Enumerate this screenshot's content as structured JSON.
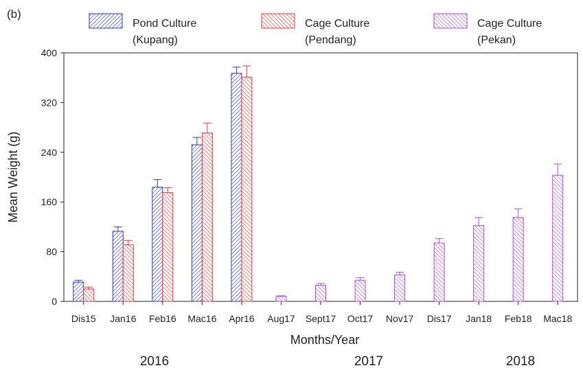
{
  "panel_label": "(b)",
  "legend": [
    {
      "line1": "Pond Culture",
      "line2": "(Kupang)",
      "color": "#2b3bb0",
      "hatch": "pattern-blue"
    },
    {
      "line1": "Cage Culture",
      "line2": "(Pendang)",
      "color": "#d93a3a",
      "hatch": "pattern-red"
    },
    {
      "line1": "Cage Culture",
      "line2": "(Pekan)",
      "color": "#a94fd0",
      "hatch": "pattern-purple"
    }
  ],
  "year_labels": [
    "2016",
    "2017",
    "2018"
  ],
  "chart_data": {
    "type": "bar",
    "xlabel": "Months/Year",
    "ylabel": "Mean Weight (g)",
    "ylim": [
      0,
      400
    ],
    "yticks": [
      0,
      80,
      160,
      240,
      320,
      400
    ],
    "grid": false,
    "legend_position": "top",
    "categories": [
      "Dis15",
      "Jan16",
      "Feb16",
      "Mac16",
      "Apr16",
      "Aug17",
      "Sept17",
      "Oct17",
      "Nov17",
      "Dis17",
      "Jan18",
      "Feb18",
      "Mac18"
    ],
    "series": [
      {
        "name": "Pond Culture (Kupang)",
        "color": "#2b3bb0",
        "values": [
          31,
          113,
          184,
          252,
          367,
          null,
          null,
          null,
          null,
          null,
          null,
          null,
          null
        ],
        "errors": [
          3,
          7,
          12,
          12,
          10,
          null,
          null,
          null,
          null,
          null,
          null,
          null,
          null
        ]
      },
      {
        "name": "Cage Culture (Pendang)",
        "color": "#d93a3a",
        "values": [
          20,
          91,
          175,
          271,
          361,
          null,
          null,
          null,
          null,
          null,
          null,
          null,
          null
        ],
        "errors": [
          3,
          7,
          8,
          16,
          18,
          null,
          null,
          null,
          null,
          null,
          null,
          null,
          null
        ]
      },
      {
        "name": "Cage Culture (Pekan)",
        "color": "#a94fd0",
        "values": [
          null,
          null,
          null,
          null,
          null,
          8,
          26,
          34,
          43,
          94,
          122,
          135,
          203
        ],
        "errors": [
          null,
          null,
          null,
          null,
          null,
          1,
          3,
          4,
          4,
          7,
          13,
          14,
          18
        ]
      }
    ]
  }
}
